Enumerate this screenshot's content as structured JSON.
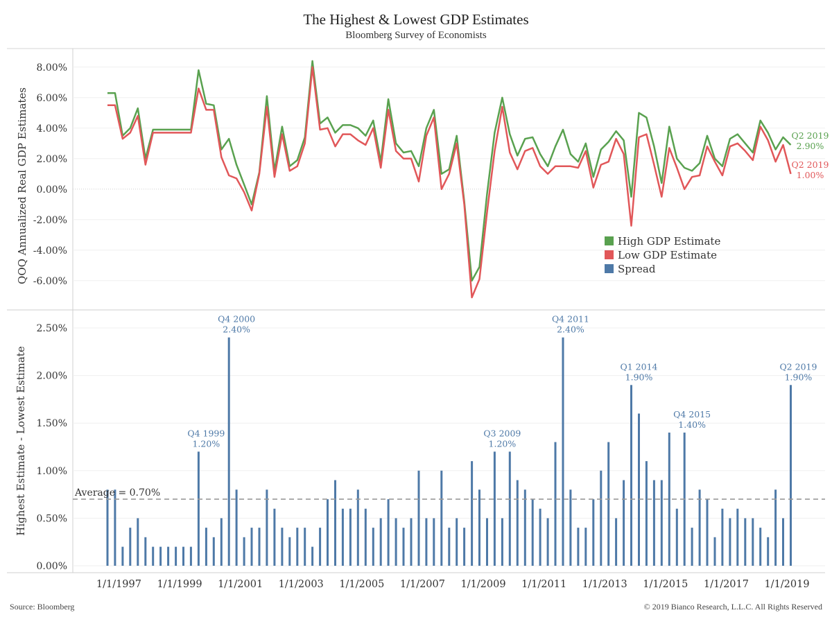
{
  "title": "The Highest & Lowest GDP Estimates",
  "subtitle": "Bloomberg Survey of Economists",
  "source": "Source: Bloomberg",
  "copyright": "© 2019 Bianco Research, L.L.C. All Rights Reserved",
  "colors": {
    "high": "#59a14f",
    "low": "#e15759",
    "spread": "#4e79a7",
    "average": "#999999"
  },
  "chart_data": [
    {
      "type": "line",
      "ylabel": "QOQ Annualized Real GDP Estimates",
      "ylim": [
        -7.5,
        8.5
      ],
      "y_ticks": [
        "8.00%",
        "6.00%",
        "4.00%",
        "2.00%",
        "0.00%",
        "-2.00%",
        "-4.00%",
        "-6.00%"
      ],
      "x_start": "1996 Q3",
      "x_frequency": "quarterly",
      "legend_placement": "center-right",
      "series": [
        {
          "name": "High GDP Estimate",
          "values": [
            6.3,
            6.3,
            3.5,
            4.0,
            5.3,
            2.0,
            3.9,
            3.9,
            3.9,
            3.9,
            3.9,
            3.9,
            7.8,
            5.6,
            5.5,
            2.6,
            3.3,
            1.6,
            0.3,
            -1.0,
            1.1,
            6.1,
            1.2,
            4.1,
            1.5,
            1.9,
            3.4,
            8.4,
            4.3,
            4.7,
            3.7,
            4.2,
            4.2,
            4.0,
            3.5,
            4.5,
            1.8,
            5.9,
            3.0,
            2.4,
            2.5,
            1.5,
            4.0,
            5.2,
            1.0,
            1.3,
            3.5,
            -0.8,
            -6.0,
            -5.1,
            -0.3,
            3.7,
            6.0,
            3.6,
            2.2,
            3.3,
            3.4,
            2.3,
            1.5,
            2.8,
            3.9,
            2.3,
            1.8,
            3.0,
            0.8,
            2.6,
            3.1,
            3.8,
            3.2,
            -0.5,
            5.0,
            4.7,
            2.8,
            0.4,
            4.1,
            2.0,
            1.4,
            1.2,
            1.7,
            3.5,
            2.0,
            1.5,
            3.3,
            3.6,
            3.0,
            2.4,
            4.5,
            3.7,
            2.6,
            3.4,
            2.9
          ]
        },
        {
          "name": "Low GDP Estimate",
          "values": [
            5.5,
            5.5,
            3.3,
            3.7,
            4.8,
            1.6,
            3.7,
            3.7,
            3.7,
            3.7,
            3.7,
            3.7,
            6.6,
            5.2,
            5.2,
            2.1,
            0.9,
            0.7,
            -0.2,
            -1.4,
            1.0,
            5.4,
            0.8,
            3.6,
            1.2,
            1.5,
            3.0,
            8.0,
            3.9,
            4.0,
            2.8,
            3.6,
            3.6,
            3.2,
            2.9,
            4.0,
            1.4,
            5.2,
            2.5,
            2.0,
            2.0,
            0.5,
            3.5,
            4.7,
            0.0,
            1.0,
            3.0,
            -1.0,
            -7.1,
            -5.9,
            -1.5,
            2.5,
            5.4,
            2.4,
            1.3,
            2.5,
            2.7,
            1.5,
            1.0,
            1.5,
            1.5,
            1.5,
            1.4,
            2.5,
            0.1,
            1.6,
            1.8,
            3.3,
            2.3,
            -2.4,
            3.4,
            3.6,
            1.6,
            -0.5,
            2.7,
            1.4,
            0.0,
            0.8,
            0.9,
            2.8,
            1.8,
            0.9,
            2.8,
            3.0,
            2.5,
            1.9,
            4.1,
            3.2,
            1.8,
            2.9,
            1.0
          ]
        }
      ],
      "annotations": [
        {
          "label": "Q2 2019",
          "value_label": "2.90%",
          "series": "High GDP Estimate"
        },
        {
          "label": "Q2 2019",
          "value_label": "1.00%",
          "series": "Low GDP Estimate"
        }
      ]
    },
    {
      "type": "bar",
      "ylabel": "Highest Estimate - Lowest Estimate",
      "ylim": [
        0,
        2.6
      ],
      "y_ticks": [
        "2.50%",
        "2.00%",
        "1.50%",
        "1.00%",
        "0.50%",
        "0.00%"
      ],
      "x_start": "1996 Q3",
      "x_frequency": "quarterly",
      "x_tick_labels": [
        "1/1/1997",
        "1/1/1999",
        "1/1/2001",
        "1/1/2003",
        "1/1/2005",
        "1/1/2007",
        "1/1/2009",
        "1/1/2011",
        "1/1/2013",
        "1/1/2015",
        "1/1/2017",
        "1/1/2019"
      ],
      "series": [
        {
          "name": "Spread",
          "values": [
            0.8,
            0.8,
            0.2,
            0.4,
            0.5,
            0.3,
            0.2,
            0.2,
            0.2,
            0.2,
            0.2,
            0.2,
            1.2,
            0.4,
            0.3,
            0.5,
            2.4,
            0.8,
            0.3,
            0.4,
            0.4,
            0.8,
            0.6,
            0.4,
            0.3,
            0.4,
            0.4,
            0.2,
            0.4,
            0.7,
            0.9,
            0.6,
            0.6,
            0.8,
            0.6,
            0.4,
            0.5,
            0.7,
            0.5,
            0.4,
            0.5,
            1.0,
            0.5,
            0.5,
            1.0,
            0.4,
            0.5,
            0.4,
            1.1,
            0.8,
            0.5,
            1.2,
            0.5,
            1.2,
            0.9,
            0.8,
            0.7,
            0.6,
            0.5,
            1.3,
            2.4,
            0.8,
            0.4,
            0.4,
            0.7,
            1.0,
            1.3,
            0.5,
            0.9,
            1.9,
            1.6,
            1.1,
            0.9,
            0.9,
            1.4,
            0.6,
            1.4,
            0.4,
            0.8,
            0.7,
            0.3,
            0.6,
            0.5,
            0.6,
            0.5,
            0.5,
            0.4,
            0.3,
            0.8,
            0.5,
            1.9
          ]
        }
      ],
      "average": {
        "value": 0.7,
        "label": "Average = 0.70%"
      },
      "annotations": [
        {
          "label": "Q4 1999",
          "value_label": "1.20%",
          "value": 1.2
        },
        {
          "label": "Q4 2000",
          "value_label": "2.40%",
          "value": 2.4
        },
        {
          "label": "Q3 2009",
          "value_label": "1.20%",
          "value": 1.2
        },
        {
          "label": "Q4 2011",
          "value_label": "2.40%",
          "value": 2.4
        },
        {
          "label": "Q1 2014",
          "value_label": "1.90%",
          "value": 1.9
        },
        {
          "label": "Q4 2015",
          "value_label": "1.40%",
          "value": 1.4
        },
        {
          "label": "Q2 2019",
          "value_label": "1.90%",
          "value": 1.9
        }
      ]
    }
  ]
}
